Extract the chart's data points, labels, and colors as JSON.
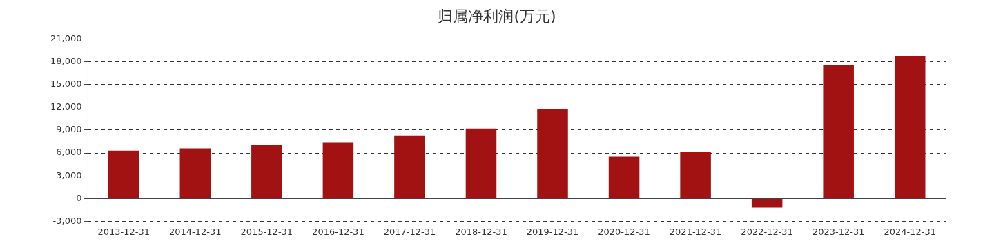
{
  "chart_data": {
    "type": "bar",
    "title": "归属净利润(万元)",
    "categories": [
      "2013-12-31",
      "2014-12-31",
      "2015-12-31",
      "2016-12-31",
      "2017-12-31",
      "2018-12-31",
      "2019-12-31",
      "2020-12-31",
      "2021-12-31",
      "2022-12-31",
      "2023-12-31",
      "2024-12-31"
    ],
    "values": [
      6300,
      6600,
      7100,
      7400,
      8300,
      9200,
      11800,
      5500,
      6100,
      -1200,
      17500,
      18700
    ],
    "color": "#a31212",
    "ylim": [
      -3000,
      21000
    ],
    "yticks": [
      {
        "value": -3000,
        "label": "-3,000"
      },
      0,
      {
        "value": 3000,
        "label": "3,000"
      },
      {
        "value": 6000,
        "label": "6,000"
      },
      {
        "value": 9000,
        "label": "9,000"
      },
      {
        "value": 12000,
        "label": "12,000"
      },
      {
        "value": 15000,
        "label": "15,000"
      },
      {
        "value": 18000,
        "label": "18,000"
      },
      {
        "value": 21000,
        "label": "21,000"
      }
    ],
    "grid": "y",
    "legend": false
  }
}
